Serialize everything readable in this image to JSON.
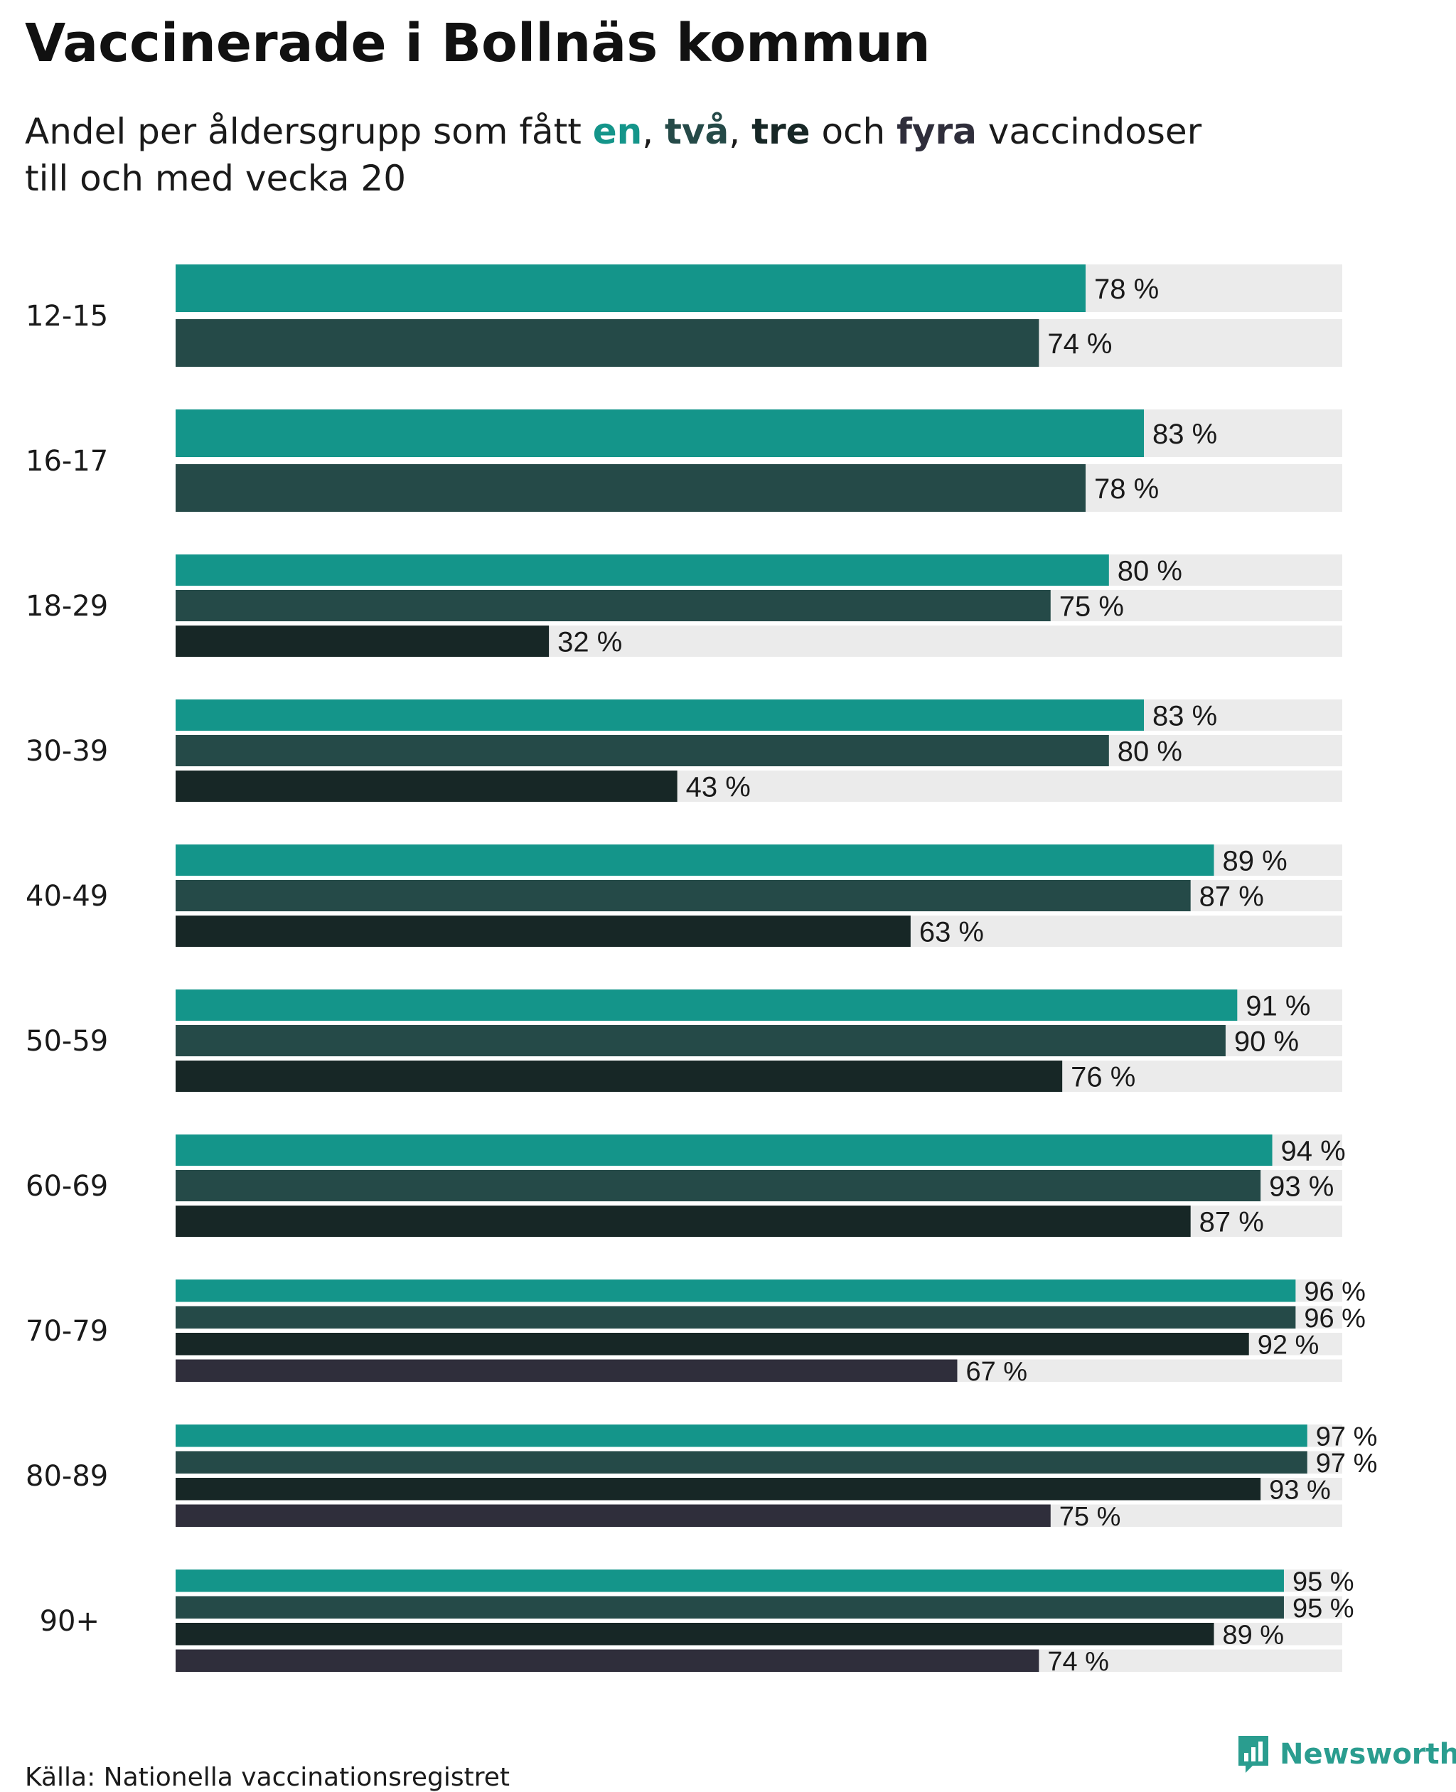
{
  "title": "Vaccinerade i Bollnäs kommun",
  "subtitle": {
    "part1": "Andel per åldersgrupp som fått ",
    "en": "en",
    "sep1": ", ",
    "tva": "två",
    "sep2": ", ",
    "tre": "tre",
    "och": " och ",
    "fyra": "fyra",
    "part2": " vaccindoser",
    "line2": "till och med vecka 20"
  },
  "colors": {
    "one_dose": "#14958a",
    "two_doses": "#254a48",
    "three_doses": "#172726",
    "four_doses": "#2f2e3b",
    "track": "#ebebeb",
    "brand": "#2a9d8f"
  },
  "chart_data": {
    "type": "bar",
    "orientation": "horizontal",
    "xlim": [
      0,
      100
    ],
    "value_suffix": " %",
    "categories": [
      "12-15",
      "16-17",
      "18-29",
      "30-39",
      "40-49",
      "50-59",
      "60-69",
      "70-79",
      "80-89",
      "90+"
    ],
    "series": [
      {
        "name": "en",
        "values": [
          78,
          83,
          80,
          83,
          89,
          91,
          94,
          96,
          97,
          95
        ]
      },
      {
        "name": "två",
        "values": [
          74,
          78,
          75,
          80,
          87,
          90,
          93,
          96,
          97,
          95
        ]
      },
      {
        "name": "tre",
        "values": [
          null,
          null,
          32,
          43,
          63,
          76,
          87,
          92,
          93,
          89
        ]
      },
      {
        "name": "fyra",
        "values": [
          null,
          null,
          null,
          null,
          null,
          null,
          null,
          67,
          75,
          74
        ]
      }
    ]
  },
  "footer": {
    "source": "Källa: Nationella vaccinationsregistret",
    "brand": "Newsworthy",
    "brand_icon": "newsworthy-logo-icon"
  }
}
